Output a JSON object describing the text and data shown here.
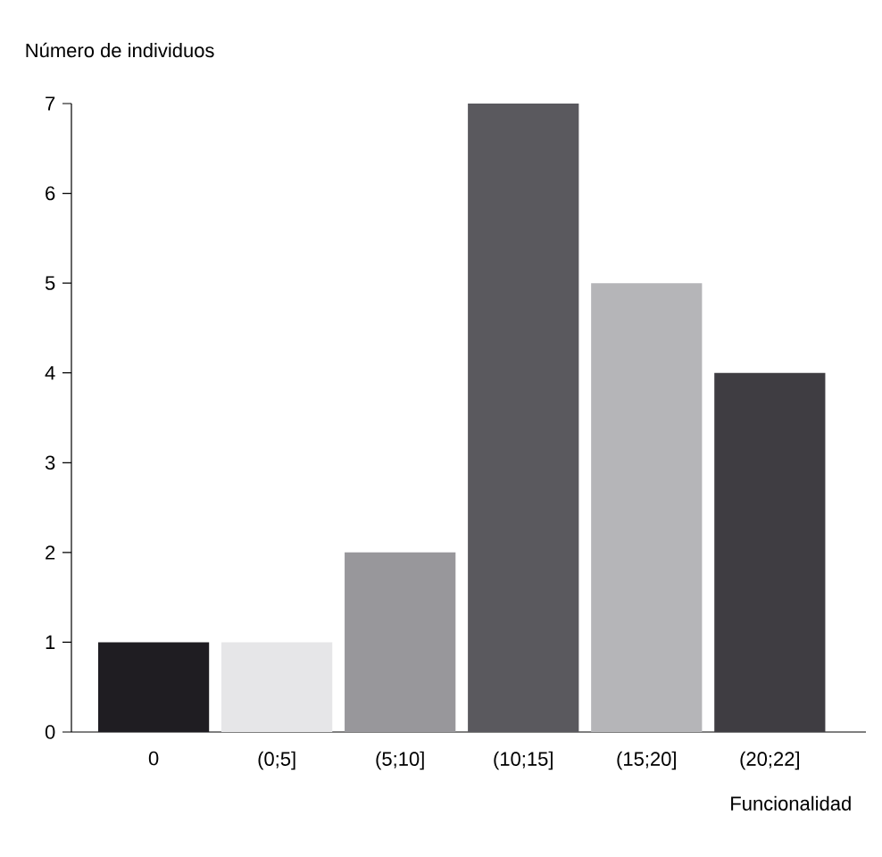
{
  "chart_data": {
    "type": "bar",
    "xlabel": "Funcionalidad",
    "ylabel": "Número de individuos",
    "categories": [
      "0",
      "(0;5]",
      "(5;10]",
      "(10;15]",
      "(15;20]",
      "(20;22]"
    ],
    "values": [
      1,
      1,
      2,
      7,
      5,
      4
    ],
    "colors": [
      "#1f1d22",
      "#e6e6e8",
      "#98979b",
      "#5a595e",
      "#b5b5b8",
      "#3f3d42"
    ],
    "ylim": [
      0,
      7
    ],
    "yticks": [
      0,
      1,
      2,
      3,
      4,
      5,
      6,
      7
    ]
  }
}
